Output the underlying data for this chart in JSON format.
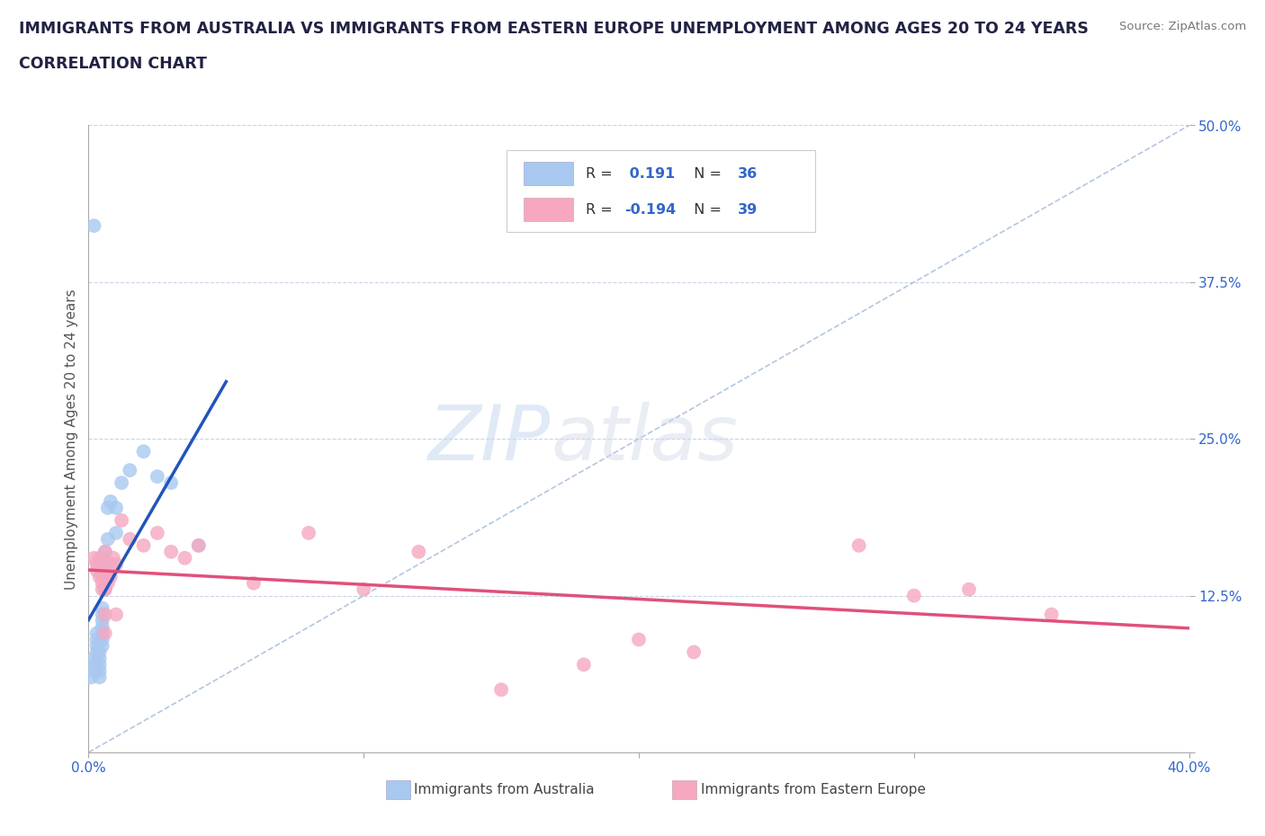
{
  "title_line1": "IMMIGRANTS FROM AUSTRALIA VS IMMIGRANTS FROM EASTERN EUROPE UNEMPLOYMENT AMONG AGES 20 TO 24 YEARS",
  "title_line2": "CORRELATION CHART",
  "source": "Source: ZipAtlas.com",
  "ylabel": "Unemployment Among Ages 20 to 24 years",
  "xlim": [
    0.0,
    0.4
  ],
  "ylim": [
    0.0,
    0.5
  ],
  "xticks": [
    0.0,
    0.1,
    0.2,
    0.3,
    0.4
  ],
  "yticks": [
    0.0,
    0.125,
    0.25,
    0.375,
    0.5
  ],
  "r_australia": 0.191,
  "n_australia": 36,
  "r_eastern_europe": -0.194,
  "n_eastern_europe": 39,
  "color_australia": "#a8c8f0",
  "color_eastern_europe": "#f5a8c0",
  "color_australia_line": "#2255bb",
  "color_eastern_europe_line": "#e0507a",
  "color_ref_line": "#a0b8d8",
  "watermark_zip": "ZIP",
  "watermark_atlas": "atlas",
  "australia_x": [
    0.001,
    0.002,
    0.002,
    0.002,
    0.003,
    0.003,
    0.003,
    0.003,
    0.004,
    0.004,
    0.004,
    0.004,
    0.004,
    0.005,
    0.005,
    0.005,
    0.005,
    0.005,
    0.005,
    0.005,
    0.006,
    0.006,
    0.006,
    0.006,
    0.007,
    0.007,
    0.008,
    0.01,
    0.01,
    0.012,
    0.015,
    0.02,
    0.025,
    0.03,
    0.04,
    0.002
  ],
  "australia_y": [
    0.06,
    0.065,
    0.07,
    0.075,
    0.08,
    0.085,
    0.09,
    0.095,
    0.06,
    0.065,
    0.07,
    0.075,
    0.08,
    0.085,
    0.09,
    0.095,
    0.1,
    0.105,
    0.11,
    0.115,
    0.13,
    0.14,
    0.15,
    0.16,
    0.17,
    0.195,
    0.2,
    0.175,
    0.195,
    0.215,
    0.225,
    0.24,
    0.22,
    0.215,
    0.165,
    0.42
  ],
  "eastern_europe_x": [
    0.002,
    0.003,
    0.003,
    0.004,
    0.004,
    0.005,
    0.005,
    0.005,
    0.005,
    0.006,
    0.006,
    0.006,
    0.006,
    0.007,
    0.007,
    0.008,
    0.008,
    0.009,
    0.01,
    0.01,
    0.012,
    0.015,
    0.02,
    0.025,
    0.03,
    0.035,
    0.04,
    0.06,
    0.08,
    0.1,
    0.12,
    0.15,
    0.18,
    0.2,
    0.22,
    0.28,
    0.3,
    0.32,
    0.35
  ],
  "eastern_europe_y": [
    0.155,
    0.145,
    0.15,
    0.14,
    0.155,
    0.13,
    0.135,
    0.14,
    0.145,
    0.095,
    0.11,
    0.13,
    0.16,
    0.135,
    0.14,
    0.14,
    0.15,
    0.155,
    0.11,
    0.15,
    0.185,
    0.17,
    0.165,
    0.175,
    0.16,
    0.155,
    0.165,
    0.135,
    0.175,
    0.13,
    0.16,
    0.05,
    0.07,
    0.09,
    0.08,
    0.165,
    0.125,
    0.13,
    0.11
  ]
}
